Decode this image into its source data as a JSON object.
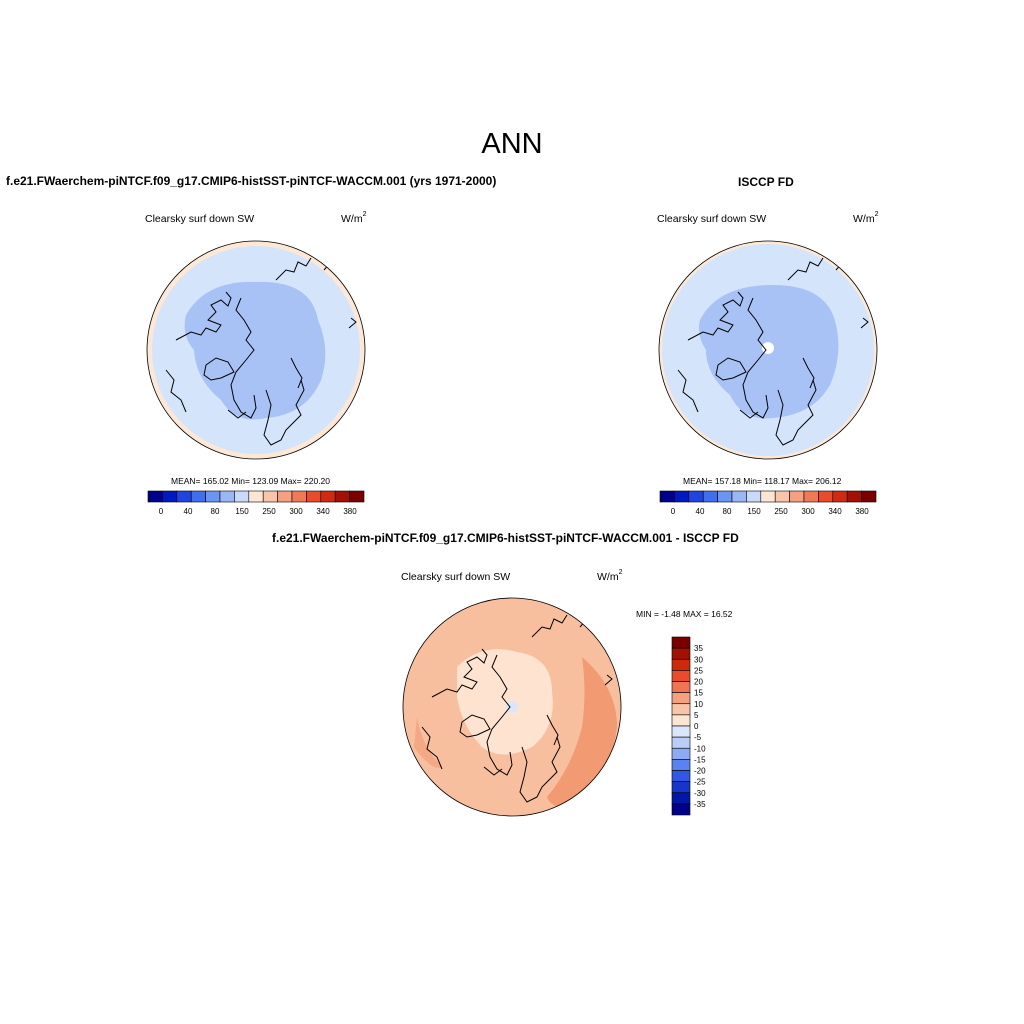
{
  "page": {
    "title": "ANN"
  },
  "panels": [
    {
      "id": "model",
      "title": "f.e21.FWaerchem-piNTCF.f09_g17.CMIP6-histSST-piNTCF-WACCM.001 (yrs 1971-2000)",
      "variable": "Clearsky surf down SW",
      "units_base": "W/m",
      "units_exp": "2",
      "stats": "MEAN= 165.02  Min= 123.09  Max= 220.20"
    },
    {
      "id": "obs",
      "title": "ISCCP FD",
      "variable": "Clearsky surf down SW",
      "units_base": "W/m",
      "units_exp": "2",
      "stats": "MEAN= 157.18  Min= 118.17  Max= 206.12"
    },
    {
      "id": "diff",
      "title": "f.e21.FWaerchem-piNTCF.f09_g17.CMIP6-histSST-piNTCF-WACCM.001 - ISCCP FD",
      "variable": "Clearsky surf down SW",
      "units_base": "W/m",
      "units_exp": "2",
      "stats": "MIN =  -1.48 MAX =  16.52"
    }
  ],
  "colorbars": {
    "abs": {
      "colors": [
        "#00008b",
        "#0018c0",
        "#1f44e0",
        "#3f6ff0",
        "#6a95f2",
        "#9ab6f5",
        "#c9d9fb",
        "#fbe6d4",
        "#f9c5a8",
        "#f5a07e",
        "#f07a56",
        "#e84c2a",
        "#d22a0e",
        "#a31104",
        "#7a0000"
      ],
      "labels": [
        "0",
        "40",
        "80",
        "150",
        "250",
        "300",
        "340",
        "380"
      ]
    },
    "diff": {
      "colors": [
        "#7a0000",
        "#a31104",
        "#cc2a0a",
        "#e84c2a",
        "#f27352",
        "#f5a07e",
        "#f9c5a8",
        "#fbe6d4",
        "#dbe6fb",
        "#b9cdf6",
        "#8cabf3",
        "#5b83f0",
        "#2f58e6",
        "#1636c9",
        "#0018a8",
        "#00008b"
      ],
      "labels": [
        "35",
        "30",
        "25",
        "20",
        "15",
        "10",
        "5",
        "0",
        "-5",
        "-10",
        "-15",
        "-20",
        "-25",
        "-30",
        "-35"
      ]
    }
  },
  "map_colors": {
    "abs_inner": "#a9c2f6",
    "abs_outer": "#d4e4fb",
    "abs_edge": "#fde8d6",
    "diff_base": "#f8bf9f",
    "diff_light": "#fde3d0",
    "diff_dark": "#f29a72",
    "pole_hole": "#dbe6fb",
    "land_outline": "#000000"
  }
}
